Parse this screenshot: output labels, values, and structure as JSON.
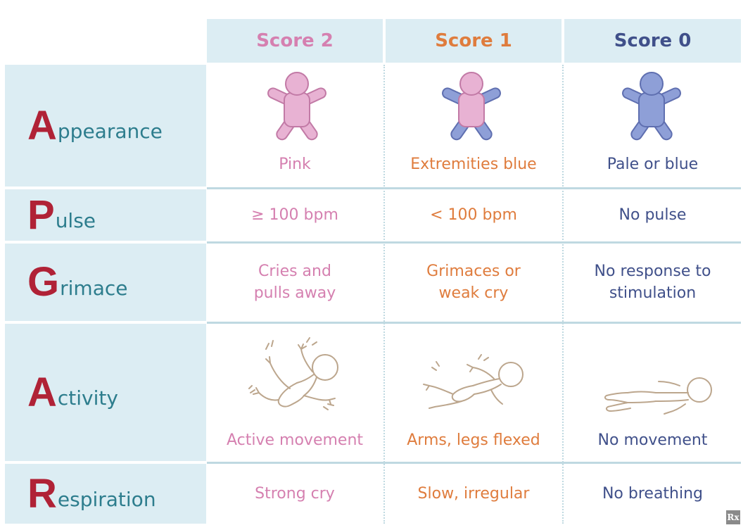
{
  "headers": {
    "score2": "Score 2",
    "score1": "Score 1",
    "score0": "Score 0"
  },
  "rows": [
    {
      "initial": "A",
      "rest": "ppearance",
      "score2": "Pink",
      "score1": "Extremities blue",
      "score0": "Pale or blue"
    },
    {
      "initial": "P",
      "rest": "ulse",
      "score2": "≥ 100 bpm",
      "score1": "< 100 bpm",
      "score0": "No pulse"
    },
    {
      "initial": "G",
      "rest": "rimace",
      "score2_l1": "Cries and",
      "score2_l2": "pulls away",
      "score1_l1": "Grimaces or",
      "score1_l2": "weak cry",
      "score0_l1": "No response to",
      "score0_l2": "stimulation"
    },
    {
      "initial": "A",
      "rest": "ctivity",
      "score2": "Active movement",
      "score1": "Arms, legs flexed",
      "score0": "No movement"
    },
    {
      "initial": "R",
      "rest": "espiration",
      "score2": "Strong cry",
      "score1": "Slow, irregular",
      "score0": "No breathing"
    }
  ],
  "logo": "Rx",
  "colors": {
    "header_bg": "#dcedf3",
    "initial": "#b02236",
    "label": "#2d7d8d",
    "score2": "#d580b0",
    "score1": "#df7c3d",
    "score0": "#40508a",
    "baby_pink": "#e8b2d3",
    "baby_blue": "#8e9fd7",
    "sketch": "#bca68d"
  }
}
